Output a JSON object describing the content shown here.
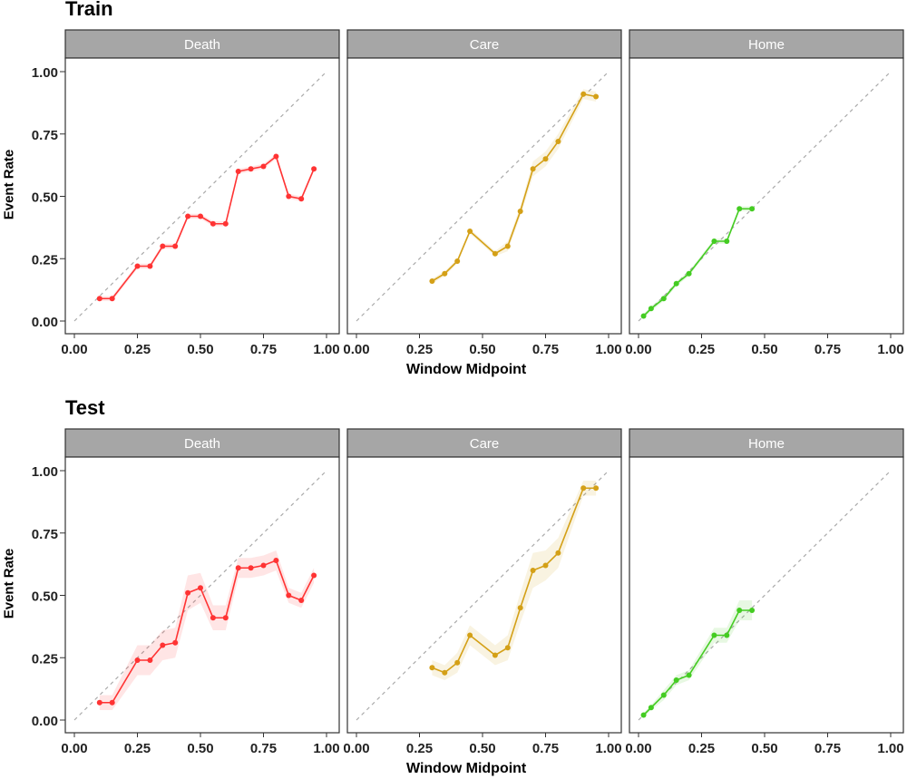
{
  "chart_data": [
    {
      "type": "line",
      "title": "Train",
      "xlabel": "Window Midpoint",
      "ylabel": "Event Rate",
      "xlim": [
        0,
        1
      ],
      "ylim": [
        0,
        1
      ],
      "xticks": [
        "0.00",
        "0.25",
        "0.50",
        "0.75",
        "1.00"
      ],
      "yticks": [
        "0.00",
        "0.25",
        "0.50",
        "0.75",
        "1.00"
      ],
      "reference_line": "diagonal dashed",
      "facets": [
        {
          "label": "Death",
          "color": "#ff3333",
          "x": [
            0.1,
            0.15,
            0.25,
            0.3,
            0.35,
            0.4,
            0.45,
            0.5,
            0.55,
            0.6,
            0.65,
            0.7,
            0.75,
            0.8,
            0.85,
            0.9,
            0.95
          ],
          "y": [
            0.09,
            0.09,
            0.22,
            0.22,
            0.3,
            0.3,
            0.42,
            0.42,
            0.39,
            0.39,
            0.6,
            0.61,
            0.62,
            0.66,
            0.5,
            0.49,
            0.61
          ],
          "band": [
            0.01,
            0.01,
            0.01,
            0.01,
            0.01,
            0.01,
            0.01,
            0.01,
            0.01,
            0.01,
            0.01,
            0.01,
            0.01,
            0.01,
            0.01,
            0.01,
            0.01
          ]
        },
        {
          "label": "Care",
          "color": "#d4a017",
          "x": [
            0.3,
            0.35,
            0.4,
            0.45,
            0.55,
            0.6,
            0.65,
            0.7,
            0.75,
            0.8,
            0.9,
            0.95
          ],
          "y": [
            0.16,
            0.19,
            0.24,
            0.36,
            0.27,
            0.3,
            0.44,
            0.61,
            0.65,
            0.72,
            0.91,
            0.9
          ],
          "band": [
            0.01,
            0.01,
            0.01,
            0.01,
            0.01,
            0.02,
            0.02,
            0.03,
            0.03,
            0.03,
            0.02,
            0.02
          ]
        },
        {
          "label": "Home",
          "color": "#44cc22",
          "x": [
            0.02,
            0.05,
            0.1,
            0.15,
            0.2,
            0.3,
            0.35,
            0.4,
            0.45
          ],
          "y": [
            0.02,
            0.05,
            0.09,
            0.15,
            0.19,
            0.32,
            0.32,
            0.45,
            0.45
          ],
          "band": [
            0.01,
            0.01,
            0.01,
            0.01,
            0.01,
            0.01,
            0.01,
            0.01,
            0.01
          ]
        }
      ]
    },
    {
      "type": "line",
      "title": "Test",
      "xlabel": "Window Midpoint",
      "ylabel": "Event Rate",
      "xlim": [
        0,
        1
      ],
      "ylim": [
        0,
        1
      ],
      "xticks": [
        "0.00",
        "0.25",
        "0.50",
        "0.75",
        "1.00"
      ],
      "yticks": [
        "0.00",
        "0.25",
        "0.50",
        "0.75",
        "1.00"
      ],
      "reference_line": "diagonal dashed",
      "facets": [
        {
          "label": "Death",
          "color": "#ff3333",
          "x": [
            0.1,
            0.15,
            0.25,
            0.3,
            0.35,
            0.4,
            0.45,
            0.5,
            0.55,
            0.6,
            0.65,
            0.7,
            0.75,
            0.8,
            0.85,
            0.9,
            0.95
          ],
          "y": [
            0.07,
            0.07,
            0.24,
            0.24,
            0.3,
            0.31,
            0.51,
            0.53,
            0.41,
            0.41,
            0.61,
            0.61,
            0.62,
            0.64,
            0.5,
            0.48,
            0.58
          ],
          "band": [
            0.03,
            0.03,
            0.06,
            0.06,
            0.06,
            0.06,
            0.07,
            0.06,
            0.05,
            0.05,
            0.04,
            0.04,
            0.04,
            0.04,
            0.03,
            0.03,
            0.03
          ]
        },
        {
          "label": "Care",
          "color": "#d4a017",
          "x": [
            0.3,
            0.35,
            0.4,
            0.45,
            0.55,
            0.6,
            0.65,
            0.7,
            0.75,
            0.8,
            0.9,
            0.95
          ],
          "y": [
            0.21,
            0.19,
            0.23,
            0.34,
            0.26,
            0.29,
            0.45,
            0.6,
            0.62,
            0.67,
            0.93,
            0.93
          ],
          "band": [
            0.03,
            0.03,
            0.04,
            0.04,
            0.04,
            0.05,
            0.06,
            0.07,
            0.06,
            0.06,
            0.03,
            0.03
          ]
        },
        {
          "label": "Home",
          "color": "#44cc22",
          "x": [
            0.02,
            0.05,
            0.1,
            0.15,
            0.2,
            0.3,
            0.35,
            0.4,
            0.45
          ],
          "y": [
            0.02,
            0.05,
            0.1,
            0.16,
            0.18,
            0.34,
            0.34,
            0.44,
            0.44
          ],
          "band": [
            0.01,
            0.01,
            0.02,
            0.02,
            0.02,
            0.03,
            0.03,
            0.04,
            0.04
          ]
        }
      ]
    }
  ]
}
